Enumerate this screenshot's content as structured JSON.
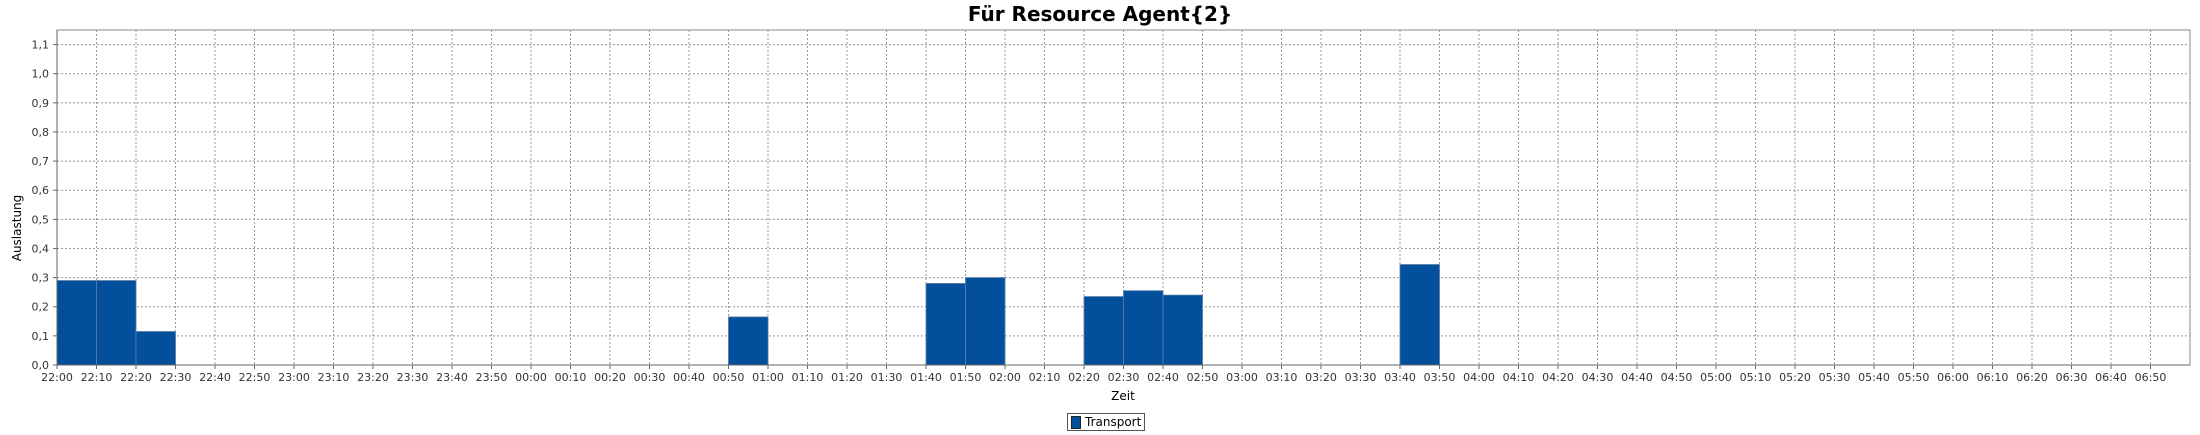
{
  "chart_data": {
    "type": "bar",
    "title": "Für Resource Agent{2}",
    "xlabel": "Zeit",
    "ylabel": "Auslastung",
    "ylim": [
      0,
      1.15
    ],
    "yticks": [
      "0,0",
      "0,1",
      "0,2",
      "0,3",
      "0,4",
      "0,5",
      "0,6",
      "0,7",
      "0,8",
      "0,9",
      "1,0",
      "1,1"
    ],
    "grid": true,
    "legend_position": "bottom-center",
    "categories": [
      "22:00",
      "22:10",
      "22:20",
      "22:30",
      "22:40",
      "22:50",
      "23:00",
      "23:10",
      "23:20",
      "23:30",
      "23:40",
      "23:50",
      "00:00",
      "00:10",
      "00:20",
      "00:30",
      "00:40",
      "00:50",
      "01:00",
      "01:10",
      "01:20",
      "01:30",
      "01:40",
      "01:50",
      "02:00",
      "02:10",
      "02:20",
      "02:30",
      "02:40",
      "02:50",
      "03:00",
      "03:10",
      "03:20",
      "03:30",
      "03:40",
      "03:50",
      "04:00",
      "04:10",
      "04:20",
      "04:30",
      "04:40",
      "04:50",
      "05:00",
      "05:10",
      "05:20",
      "05:30",
      "05:40",
      "05:50",
      "06:00",
      "06:10",
      "06:20",
      "06:30",
      "06:40",
      "06:50"
    ],
    "series": [
      {
        "name": "Transport",
        "color": "#02509c",
        "values": [
          0.29,
          0.29,
          0.115,
          0,
          0,
          0,
          0,
          0,
          0,
          0,
          0,
          0,
          0,
          0,
          0,
          0,
          0,
          0.165,
          0,
          0,
          0,
          0,
          0.28,
          0.3,
          0,
          0,
          0.235,
          0.255,
          0.24,
          0,
          0,
          0,
          0,
          0,
          0.345,
          0,
          0,
          0,
          0,
          0,
          0,
          0,
          0,
          0,
          0,
          0,
          0,
          0,
          0,
          0,
          0,
          0,
          0,
          0
        ]
      }
    ]
  }
}
